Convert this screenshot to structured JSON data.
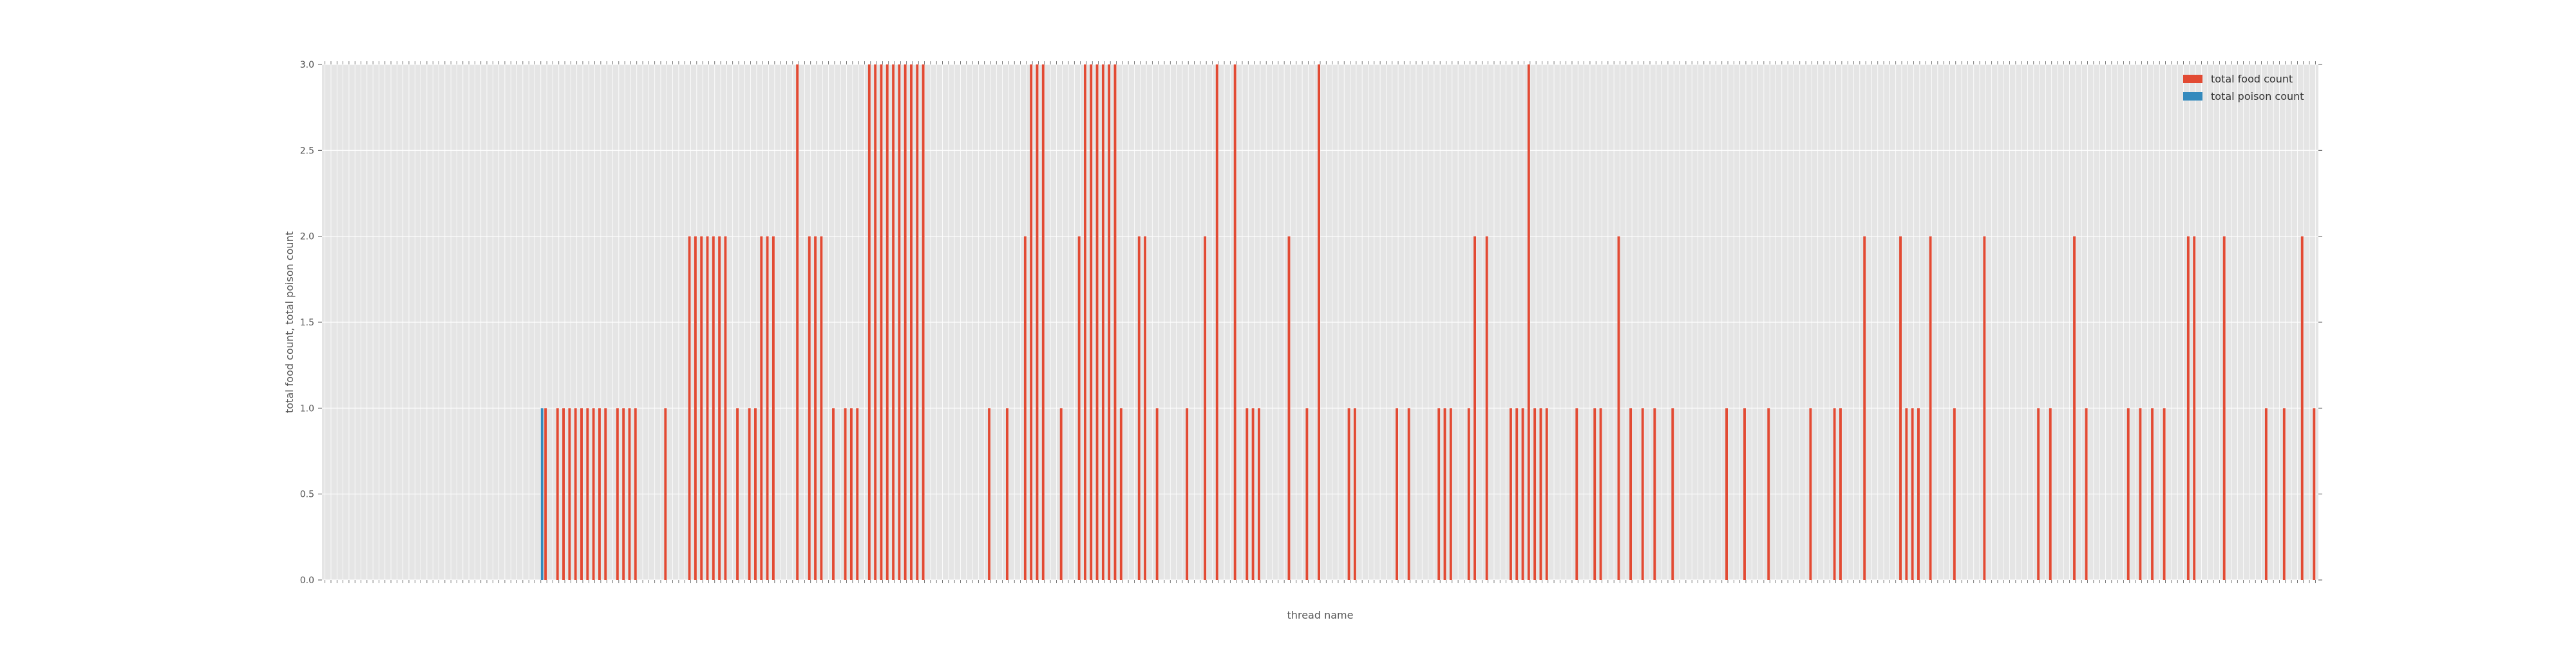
{
  "chart_data": {
    "type": "bar",
    "xlabel": "thread name",
    "ylabel": "total food count, total poison count",
    "ylim": [
      0.0,
      3.0
    ],
    "yticks": [
      "0.0",
      "0.5",
      "1.0",
      "1.5",
      "2.0",
      "2.5",
      "3.0"
    ],
    "grid": true,
    "legend_position": "top-right",
    "colors": {
      "background": "#e5e5e5",
      "grid": "#ffffff",
      "food": "#e24a33",
      "poison": "#348abd"
    },
    "series": [
      {
        "name": "total food count",
        "values": [
          0,
          0,
          0,
          0,
          0,
          0,
          0,
          0,
          0,
          0,
          0,
          0,
          0,
          0,
          0,
          0,
          0,
          0,
          0,
          0,
          0,
          0,
          0,
          0,
          0,
          0,
          0,
          0,
          0,
          0,
          0,
          0,
          0,
          0,
          0,
          0,
          0,
          1,
          0,
          1,
          1,
          1,
          1,
          1,
          1,
          1,
          1,
          1,
          0,
          1,
          1,
          1,
          1,
          0,
          0,
          0,
          0,
          1,
          0,
          0,
          0,
          2,
          2,
          2,
          2,
          2,
          2,
          2,
          0,
          1,
          0,
          1,
          1,
          2,
          2,
          2,
          0,
          0,
          0,
          3,
          0,
          2,
          2,
          2,
          0,
          1,
          0,
          1,
          1,
          1,
          0,
          3,
          3,
          3,
          3,
          3,
          3,
          3,
          3,
          3,
          3,
          0,
          0,
          0,
          0,
          0,
          0,
          0,
          0,
          0,
          0,
          1,
          0,
          0,
          1,
          0,
          0,
          2,
          3,
          3,
          3,
          0,
          0,
          1,
          0,
          0,
          2,
          3,
          3,
          3,
          3,
          3,
          3,
          1,
          0,
          0,
          2,
          2,
          0,
          1,
          0,
          0,
          0,
          0,
          1,
          0,
          0,
          2,
          0,
          3,
          0,
          0,
          3,
          0,
          1,
          1,
          1,
          0,
          0,
          0,
          0,
          2,
          0,
          0,
          1,
          0,
          3,
          0,
          0,
          0,
          0,
          1,
          1,
          0,
          0,
          0,
          0,
          0,
          0,
          1,
          0,
          1,
          0,
          0,
          0,
          0,
          1,
          1,
          1,
          0,
          0,
          1,
          2,
          0,
          2,
          0,
          0,
          0,
          1,
          1,
          1,
          3,
          1,
          1,
          1,
          0,
          0,
          0,
          0,
          1,
          0,
          0,
          1,
          1,
          0,
          0,
          2,
          0,
          1,
          0,
          1,
          0,
          1,
          0,
          0,
          1,
          0,
          0,
          0,
          0,
          0,
          0,
          0,
          0,
          1,
          0,
          0,
          1,
          0,
          0,
          0,
          1,
          0,
          0,
          0,
          0,
          0,
          0,
          1,
          0,
          0,
          0,
          1,
          1,
          0,
          0,
          0,
          2,
          0,
          0,
          0,
          0,
          0,
          2,
          1,
          1,
          1,
          0,
          2,
          0,
          0,
          0,
          1,
          0,
          0,
          0,
          0,
          2,
          0,
          0,
          0,
          0,
          0,
          0,
          0,
          0,
          1,
          0,
          1,
          0,
          0,
          0,
          2,
          0,
          1,
          0,
          0,
          0,
          0,
          0,
          0,
          1,
          0,
          1,
          0,
          1,
          0,
          1,
          0,
          0,
          0,
          2,
          2,
          0,
          0,
          0,
          0,
          2,
          0,
          0,
          0,
          0,
          0,
          0,
          1,
          0,
          0,
          1,
          0,
          0,
          2,
          0,
          1
        ]
      },
      {
        "name": "total poison count",
        "values": [
          0,
          0,
          0,
          0,
          0,
          0,
          0,
          0,
          0,
          0,
          0,
          0,
          0,
          0,
          0,
          0,
          0,
          0,
          0,
          0,
          0,
          0,
          0,
          0,
          0,
          0,
          0,
          0,
          0,
          0,
          0,
          0,
          0,
          0,
          0,
          0,
          1,
          0,
          0,
          0,
          0,
          0,
          0,
          0,
          0,
          0,
          0,
          0,
          0,
          0,
          0,
          0,
          0,
          0,
          0,
          0,
          0,
          0,
          0,
          0,
          0,
          0,
          0,
          0,
          0,
          0,
          0,
          0,
          0,
          0,
          0,
          0,
          0,
          0,
          0,
          0,
          0,
          0,
          0,
          0,
          0,
          0,
          0,
          0,
          0,
          0,
          0,
          0,
          0,
          0,
          0,
          0,
          0,
          0,
          0,
          0,
          0,
          0,
          0,
          0,
          0,
          0,
          0,
          0,
          0,
          0,
          0,
          0,
          0,
          0,
          0,
          0,
          0,
          0,
          0,
          0,
          0,
          0,
          0,
          0,
          0,
          0,
          0,
          0,
          0,
          0,
          0,
          0,
          0,
          0,
          0,
          0,
          0,
          0,
          0,
          0,
          0,
          0,
          0,
          0,
          0,
          0,
          0,
          0,
          0,
          0,
          0,
          0,
          0,
          0,
          0,
          0,
          0,
          0,
          0,
          0,
          0,
          0,
          0,
          0,
          0,
          0,
          0,
          0,
          0,
          0,
          0,
          0,
          0,
          0,
          0,
          0,
          0,
          0,
          0,
          0,
          0,
          0,
          0,
          0,
          0,
          0,
          0,
          0,
          0,
          0,
          0,
          0,
          0,
          0,
          0,
          0,
          0,
          0,
          0,
          0,
          0,
          0,
          0,
          0,
          0,
          0,
          0,
          0,
          0,
          0,
          0,
          0,
          0,
          0,
          0,
          0,
          0,
          0,
          0,
          0,
          0,
          0,
          0,
          0,
          0,
          0,
          0,
          0,
          0,
          0,
          0,
          0,
          0,
          0,
          0,
          0,
          0,
          0,
          0,
          0,
          0,
          0,
          0,
          0,
          0,
          0,
          0,
          0,
          0,
          0,
          0,
          0,
          0,
          0,
          0,
          0,
          0,
          0,
          0,
          0,
          0,
          0,
          0,
          0,
          0,
          0,
          0,
          0,
          0,
          0,
          0,
          0,
          0,
          0,
          0,
          0,
          0,
          0,
          0,
          0,
          0,
          0,
          0,
          0,
          0,
          0,
          0,
          0,
          0,
          0,
          0,
          0,
          0,
          0,
          0,
          0,
          0,
          0,
          0,
          0,
          0,
          0,
          0,
          0,
          0,
          0,
          0,
          0,
          0,
          0,
          0,
          0,
          0,
          0,
          0,
          0,
          0,
          0,
          0,
          0,
          0,
          0,
          0,
          0,
          0,
          0,
          0,
          0,
          0,
          0,
          0,
          0,
          0,
          0,
          0,
          0,
          0,
          0,
          0,
          0,
          0,
          0,
          0
        ]
      }
    ]
  }
}
